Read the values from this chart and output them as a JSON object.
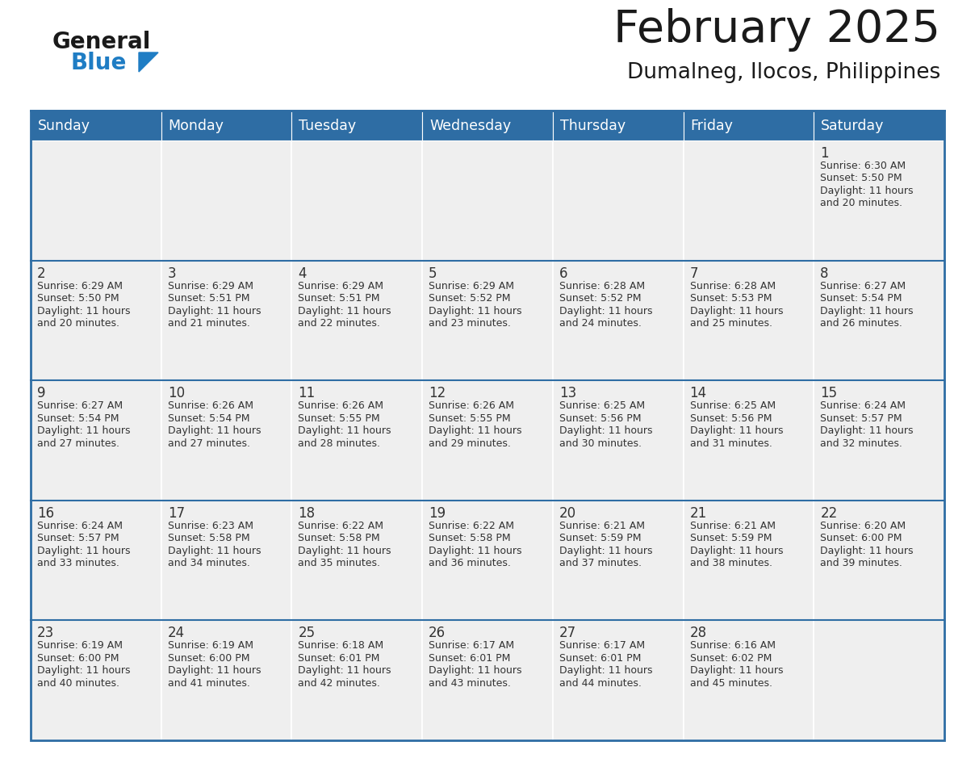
{
  "title": "February 2025",
  "subtitle": "Dumalneg, Ilocos, Philippines",
  "header_color": "#2E6DA4",
  "header_text_color": "#FFFFFF",
  "cell_bg_color": "#EFEFEF",
  "border_color": "#2E6DA4",
  "title_color": "#1a1a1a",
  "subtitle_color": "#1a1a1a",
  "logo_general_color": "#1a1a1a",
  "logo_blue_color": "#1F7DC4",
  "cell_text_color": "#333333",
  "day_number_color": "#333333",
  "day_headers": [
    "Sunday",
    "Monday",
    "Tuesday",
    "Wednesday",
    "Thursday",
    "Friday",
    "Saturday"
  ],
  "calendar_data": [
    [
      null,
      null,
      null,
      null,
      null,
      null,
      {
        "day": 1,
        "sunrise": "6:30 AM",
        "sunset": "5:50 PM",
        "daylight_hours": 11,
        "daylight_minutes": 20
      }
    ],
    [
      {
        "day": 2,
        "sunrise": "6:29 AM",
        "sunset": "5:50 PM",
        "daylight_hours": 11,
        "daylight_minutes": 20
      },
      {
        "day": 3,
        "sunrise": "6:29 AM",
        "sunset": "5:51 PM",
        "daylight_hours": 11,
        "daylight_minutes": 21
      },
      {
        "day": 4,
        "sunrise": "6:29 AM",
        "sunset": "5:51 PM",
        "daylight_hours": 11,
        "daylight_minutes": 22
      },
      {
        "day": 5,
        "sunrise": "6:29 AM",
        "sunset": "5:52 PM",
        "daylight_hours": 11,
        "daylight_minutes": 23
      },
      {
        "day": 6,
        "sunrise": "6:28 AM",
        "sunset": "5:52 PM",
        "daylight_hours": 11,
        "daylight_minutes": 24
      },
      {
        "day": 7,
        "sunrise": "6:28 AM",
        "sunset": "5:53 PM",
        "daylight_hours": 11,
        "daylight_minutes": 25
      },
      {
        "day": 8,
        "sunrise": "6:27 AM",
        "sunset": "5:54 PM",
        "daylight_hours": 11,
        "daylight_minutes": 26
      }
    ],
    [
      {
        "day": 9,
        "sunrise": "6:27 AM",
        "sunset": "5:54 PM",
        "daylight_hours": 11,
        "daylight_minutes": 27
      },
      {
        "day": 10,
        "sunrise": "6:26 AM",
        "sunset": "5:54 PM",
        "daylight_hours": 11,
        "daylight_minutes": 27
      },
      {
        "day": 11,
        "sunrise": "6:26 AM",
        "sunset": "5:55 PM",
        "daylight_hours": 11,
        "daylight_minutes": 28
      },
      {
        "day": 12,
        "sunrise": "6:26 AM",
        "sunset": "5:55 PM",
        "daylight_hours": 11,
        "daylight_minutes": 29
      },
      {
        "day": 13,
        "sunrise": "6:25 AM",
        "sunset": "5:56 PM",
        "daylight_hours": 11,
        "daylight_minutes": 30
      },
      {
        "day": 14,
        "sunrise": "6:25 AM",
        "sunset": "5:56 PM",
        "daylight_hours": 11,
        "daylight_minutes": 31
      },
      {
        "day": 15,
        "sunrise": "6:24 AM",
        "sunset": "5:57 PM",
        "daylight_hours": 11,
        "daylight_minutes": 32
      }
    ],
    [
      {
        "day": 16,
        "sunrise": "6:24 AM",
        "sunset": "5:57 PM",
        "daylight_hours": 11,
        "daylight_minutes": 33
      },
      {
        "day": 17,
        "sunrise": "6:23 AM",
        "sunset": "5:58 PM",
        "daylight_hours": 11,
        "daylight_minutes": 34
      },
      {
        "day": 18,
        "sunrise": "6:22 AM",
        "sunset": "5:58 PM",
        "daylight_hours": 11,
        "daylight_minutes": 35
      },
      {
        "day": 19,
        "sunrise": "6:22 AM",
        "sunset": "5:58 PM",
        "daylight_hours": 11,
        "daylight_minutes": 36
      },
      {
        "day": 20,
        "sunrise": "6:21 AM",
        "sunset": "5:59 PM",
        "daylight_hours": 11,
        "daylight_minutes": 37
      },
      {
        "day": 21,
        "sunrise": "6:21 AM",
        "sunset": "5:59 PM",
        "daylight_hours": 11,
        "daylight_minutes": 38
      },
      {
        "day": 22,
        "sunrise": "6:20 AM",
        "sunset": "6:00 PM",
        "daylight_hours": 11,
        "daylight_minutes": 39
      }
    ],
    [
      {
        "day": 23,
        "sunrise": "6:19 AM",
        "sunset": "6:00 PM",
        "daylight_hours": 11,
        "daylight_minutes": 40
      },
      {
        "day": 24,
        "sunrise": "6:19 AM",
        "sunset": "6:00 PM",
        "daylight_hours": 11,
        "daylight_minutes": 41
      },
      {
        "day": 25,
        "sunrise": "6:18 AM",
        "sunset": "6:01 PM",
        "daylight_hours": 11,
        "daylight_minutes": 42
      },
      {
        "day": 26,
        "sunrise": "6:17 AM",
        "sunset": "6:01 PM",
        "daylight_hours": 11,
        "daylight_minutes": 43
      },
      {
        "day": 27,
        "sunrise": "6:17 AM",
        "sunset": "6:01 PM",
        "daylight_hours": 11,
        "daylight_minutes": 44
      },
      {
        "day": 28,
        "sunrise": "6:16 AM",
        "sunset": "6:02 PM",
        "daylight_hours": 11,
        "daylight_minutes": 45
      },
      null
    ]
  ]
}
